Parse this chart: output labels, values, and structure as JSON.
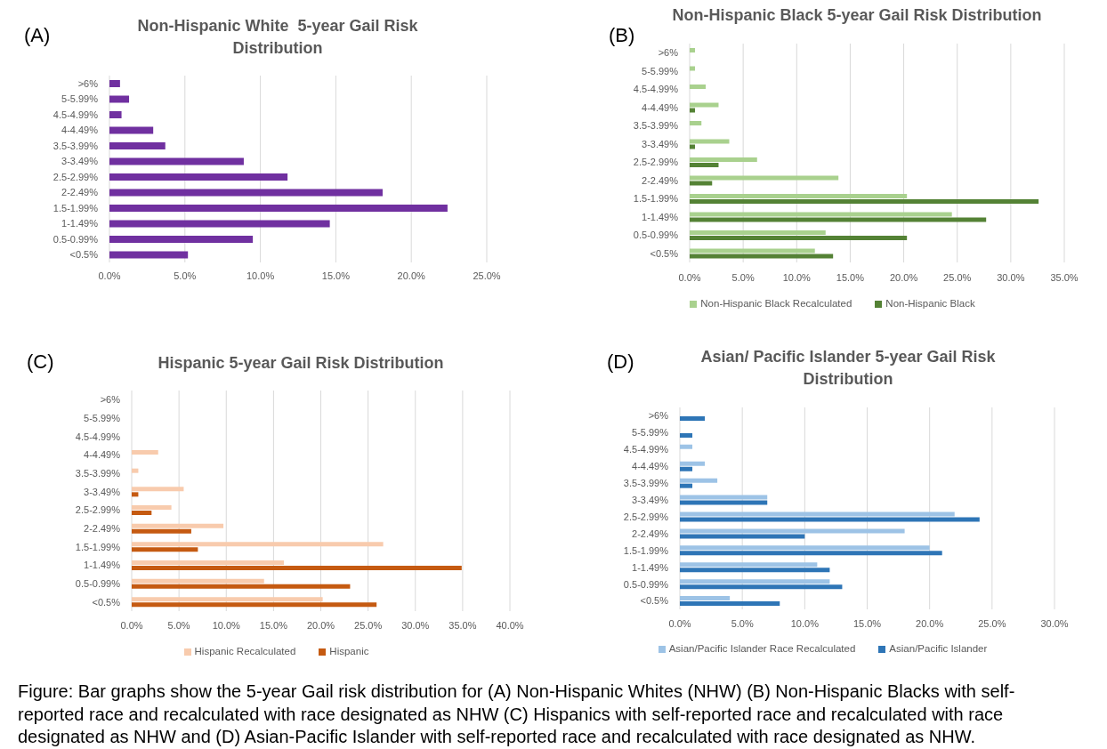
{
  "chart_data": [
    {
      "type": "bar",
      "orientation": "horizontal",
      "title": "Non-Hispanic White  5-year Gail Risk Distribution",
      "annotations": [
        "(A)"
      ],
      "categories": [
        ">6%",
        "5-5.99%",
        "4.5-4.99%",
        "4-4.49%",
        "3.5-3.99%",
        "3-3.49%",
        "2.5-2.99%",
        "2-2.49%",
        "1.5-1.99%",
        "1-1.49%",
        "0.5-0.99%",
        "<0.5%"
      ],
      "values": [
        0.7,
        1.3,
        0.8,
        2.9,
        3.7,
        8.9,
        11.8,
        18.1,
        22.4,
        14.6,
        9.5,
        5.2
      ],
      "color": "#7030a0",
      "xlim": [
        0,
        25
      ],
      "xticks": [
        {
          "value": 0,
          "label": "0.0%"
        },
        {
          "value": 5,
          "label": "5.0%"
        },
        {
          "value": 10,
          "label": "10.0%"
        },
        {
          "value": 15,
          "label": "15.0%"
        },
        {
          "value": 20,
          "label": "20.0%"
        },
        {
          "value": 25,
          "label": "25.0%"
        }
      ],
      "grid": "x"
    },
    {
      "type": "bar",
      "orientation": "horizontal",
      "title": "Non-Hispanic Black 5-year Gail Risk Distribution",
      "annotations": [
        "(B)"
      ],
      "categories": [
        ">6%",
        "5-5.99%",
        "4.5-4.99%",
        "4-4.49%",
        "3.5-3.99%",
        "3-3.49%",
        "2.5-2.99%",
        "2-2.49%",
        "1.5-1.99%",
        "1-1.49%",
        "0.5-0.99%",
        "<0.5%"
      ],
      "series": [
        {
          "name": "Non-Hispanic Black Recalculated",
          "color": "#a9d18e",
          "values": [
            0.5,
            0.5,
            1.5,
            2.7,
            1.1,
            3.7,
            6.3,
            13.9,
            20.3,
            24.5,
            12.7,
            11.7
          ]
        },
        {
          "name": "Non-Hispanic Black",
          "color": "#548235",
          "values": [
            null,
            null,
            null,
            0.5,
            null,
            0.5,
            2.7,
            2.1,
            32.6,
            27.7,
            20.3,
            13.4
          ]
        }
      ],
      "xlim": [
        0,
        35
      ],
      "xticks": [
        {
          "value": 0,
          "label": "0.0%"
        },
        {
          "value": 5,
          "label": "5.0%"
        },
        {
          "value": 10,
          "label": "10.0%"
        },
        {
          "value": 15,
          "label": "15.0%"
        },
        {
          "value": 20,
          "label": "20.0%"
        },
        {
          "value": 25,
          "label": "25.0%"
        },
        {
          "value": 30,
          "label": "30.0%"
        },
        {
          "value": 35,
          "label": "35.0%"
        }
      ],
      "grid": "x",
      "legend": "bottom"
    },
    {
      "type": "bar",
      "orientation": "horizontal",
      "title": "Hispanic 5-year Gail Risk Distribution",
      "annotations": [
        "(C)"
      ],
      "categories": [
        ">6%",
        "5-5.99%",
        "4.5-4.99%",
        "4-4.49%",
        "3.5-3.99%",
        "3-3.49%",
        "2.5-2.99%",
        "2-2.49%",
        "1.5-1.99%",
        "1-1.49%",
        "0.5-0.99%",
        "<0.5%"
      ],
      "series": [
        {
          "name": "Hispanic Recalculated",
          "color": "#f8cbad",
          "values": [
            null,
            null,
            null,
            2.8,
            0.7,
            5.5,
            4.2,
            9.7,
            26.6,
            16.1,
            14.0,
            20.2
          ]
        },
        {
          "name": "Hispanic",
          "color": "#c55a11",
          "values": [
            null,
            null,
            null,
            null,
            null,
            0.7,
            2.1,
            6.3,
            7.0,
            34.9,
            23.1,
            25.9
          ]
        }
      ],
      "xlim": [
        0,
        40
      ],
      "xticks": [
        {
          "value": 0,
          "label": "0.0%"
        },
        {
          "value": 5,
          "label": "5.0%"
        },
        {
          "value": 10,
          "label": "10.0%"
        },
        {
          "value": 15,
          "label": "15.0%"
        },
        {
          "value": 20,
          "label": "20.0%"
        },
        {
          "value": 25,
          "label": "25.0%"
        },
        {
          "value": 30,
          "label": "30.0%"
        },
        {
          "value": 35,
          "label": "35.0%"
        },
        {
          "value": 40,
          "label": "40.0%"
        }
      ],
      "grid": "x",
      "legend": "bottom"
    },
    {
      "type": "bar",
      "orientation": "horizontal",
      "title": "Asian/ Pacific Islander 5-year Gail Risk Distribution",
      "annotations": [
        "(D)"
      ],
      "categories": [
        ">6%",
        "5-5.99%",
        "4.5-4.99%",
        "4-4.49%",
        "3.5-3.99%",
        "3-3.49%",
        "2.5-2.99%",
        "2-2.49%",
        "1.5-1.99%",
        "1-1.49%",
        "0.5-0.99%",
        "<0.5%"
      ],
      "series": [
        {
          "name": "Asian/Pacific Islander Race Recalculated",
          "color": "#9dc3e6",
          "values": [
            null,
            null,
            1,
            2,
            3,
            7,
            22,
            18,
            20,
            11,
            12,
            4
          ]
        },
        {
          "name": "Asian/Pacific Islander",
          "color": "#2e75b6",
          "values": [
            2,
            1,
            null,
            1,
            1,
            7,
            24,
            10,
            21,
            12,
            13,
            8
          ]
        }
      ],
      "xlim": [
        0,
        30
      ],
      "xticks": [
        {
          "value": 0,
          "label": "0.0%"
        },
        {
          "value": 5,
          "label": "5.0%"
        },
        {
          "value": 10,
          "label": "10.0%"
        },
        {
          "value": 15,
          "label": "15.0%"
        },
        {
          "value": 20,
          "label": "20.0%"
        },
        {
          "value": 25,
          "label": "25.0%"
        },
        {
          "value": 30,
          "label": "30.0%"
        }
      ],
      "grid": "x",
      "legend": "bottom"
    },
    {
      "type": "other",
      "annotations": [
        "Figure: Bar graphs show the 5-year Gail risk distribution for (A) Non-Hispanic Whites (NHW) (B) Non-Hispanic Blacks with self-reported race and recalculated with race designated as NHW (C) Hispanics with self-reported race and recalculated with race designated as NHW and (D) Asian-Pacific Islander with self-reported race and recalculated with race designated as NHW."
      ]
    }
  ]
}
